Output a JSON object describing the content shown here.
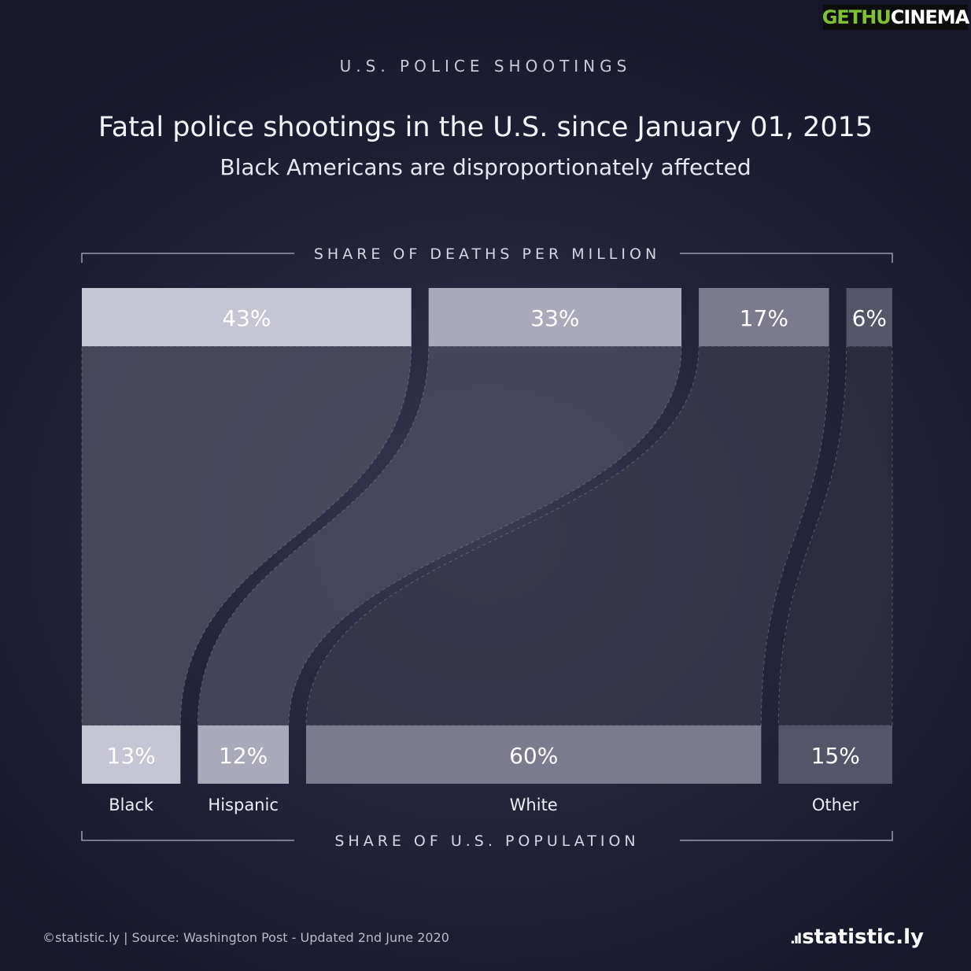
{
  "watermark": {
    "part1": "GETHU",
    "part2": "CINEMA"
  },
  "kicker": "U.S. POLICE SHOOTINGS",
  "title": "Fatal police shootings in the U.S. since January 01, 2015",
  "subtitle": "Black Americans are disproportionately affected",
  "footer": {
    "source": "©statistic.ly | Source: Washington Post - Updated 2nd June 2020",
    "brand_mark": ".ıl",
    "brand": "statistic.ly"
  },
  "chart_data": {
    "type": "bar",
    "top_axis_label": "SHARE OF DEATHS PER MILLION",
    "bottom_axis_label": "SHARE OF U.S. POPULATION",
    "categories": [
      "Black",
      "Hispanic",
      "White",
      "Other"
    ],
    "series": [
      {
        "name": "SHARE OF DEATHS PER MILLION",
        "values": [
          43,
          33,
          17,
          6
        ],
        "labels": [
          "43%",
          "33%",
          "17%",
          "6%"
        ]
      },
      {
        "name": "SHARE OF U.S. POPULATION",
        "values": [
          13,
          12,
          60,
          15
        ],
        "labels": [
          "13%",
          "12%",
          "60%",
          "15%"
        ]
      }
    ],
    "colors": {
      "top": [
        "#c5c5d3",
        "#a9a9b9",
        "#7b7b8d",
        "#55556a"
      ],
      "bottom": [
        "#c5c5d3",
        "#a9a9b9",
        "#7b7b8d",
        "#55556a"
      ],
      "flow": [
        "#4d4d60",
        "#4a4a5e",
        "#38384b",
        "#2e2e40"
      ]
    }
  }
}
